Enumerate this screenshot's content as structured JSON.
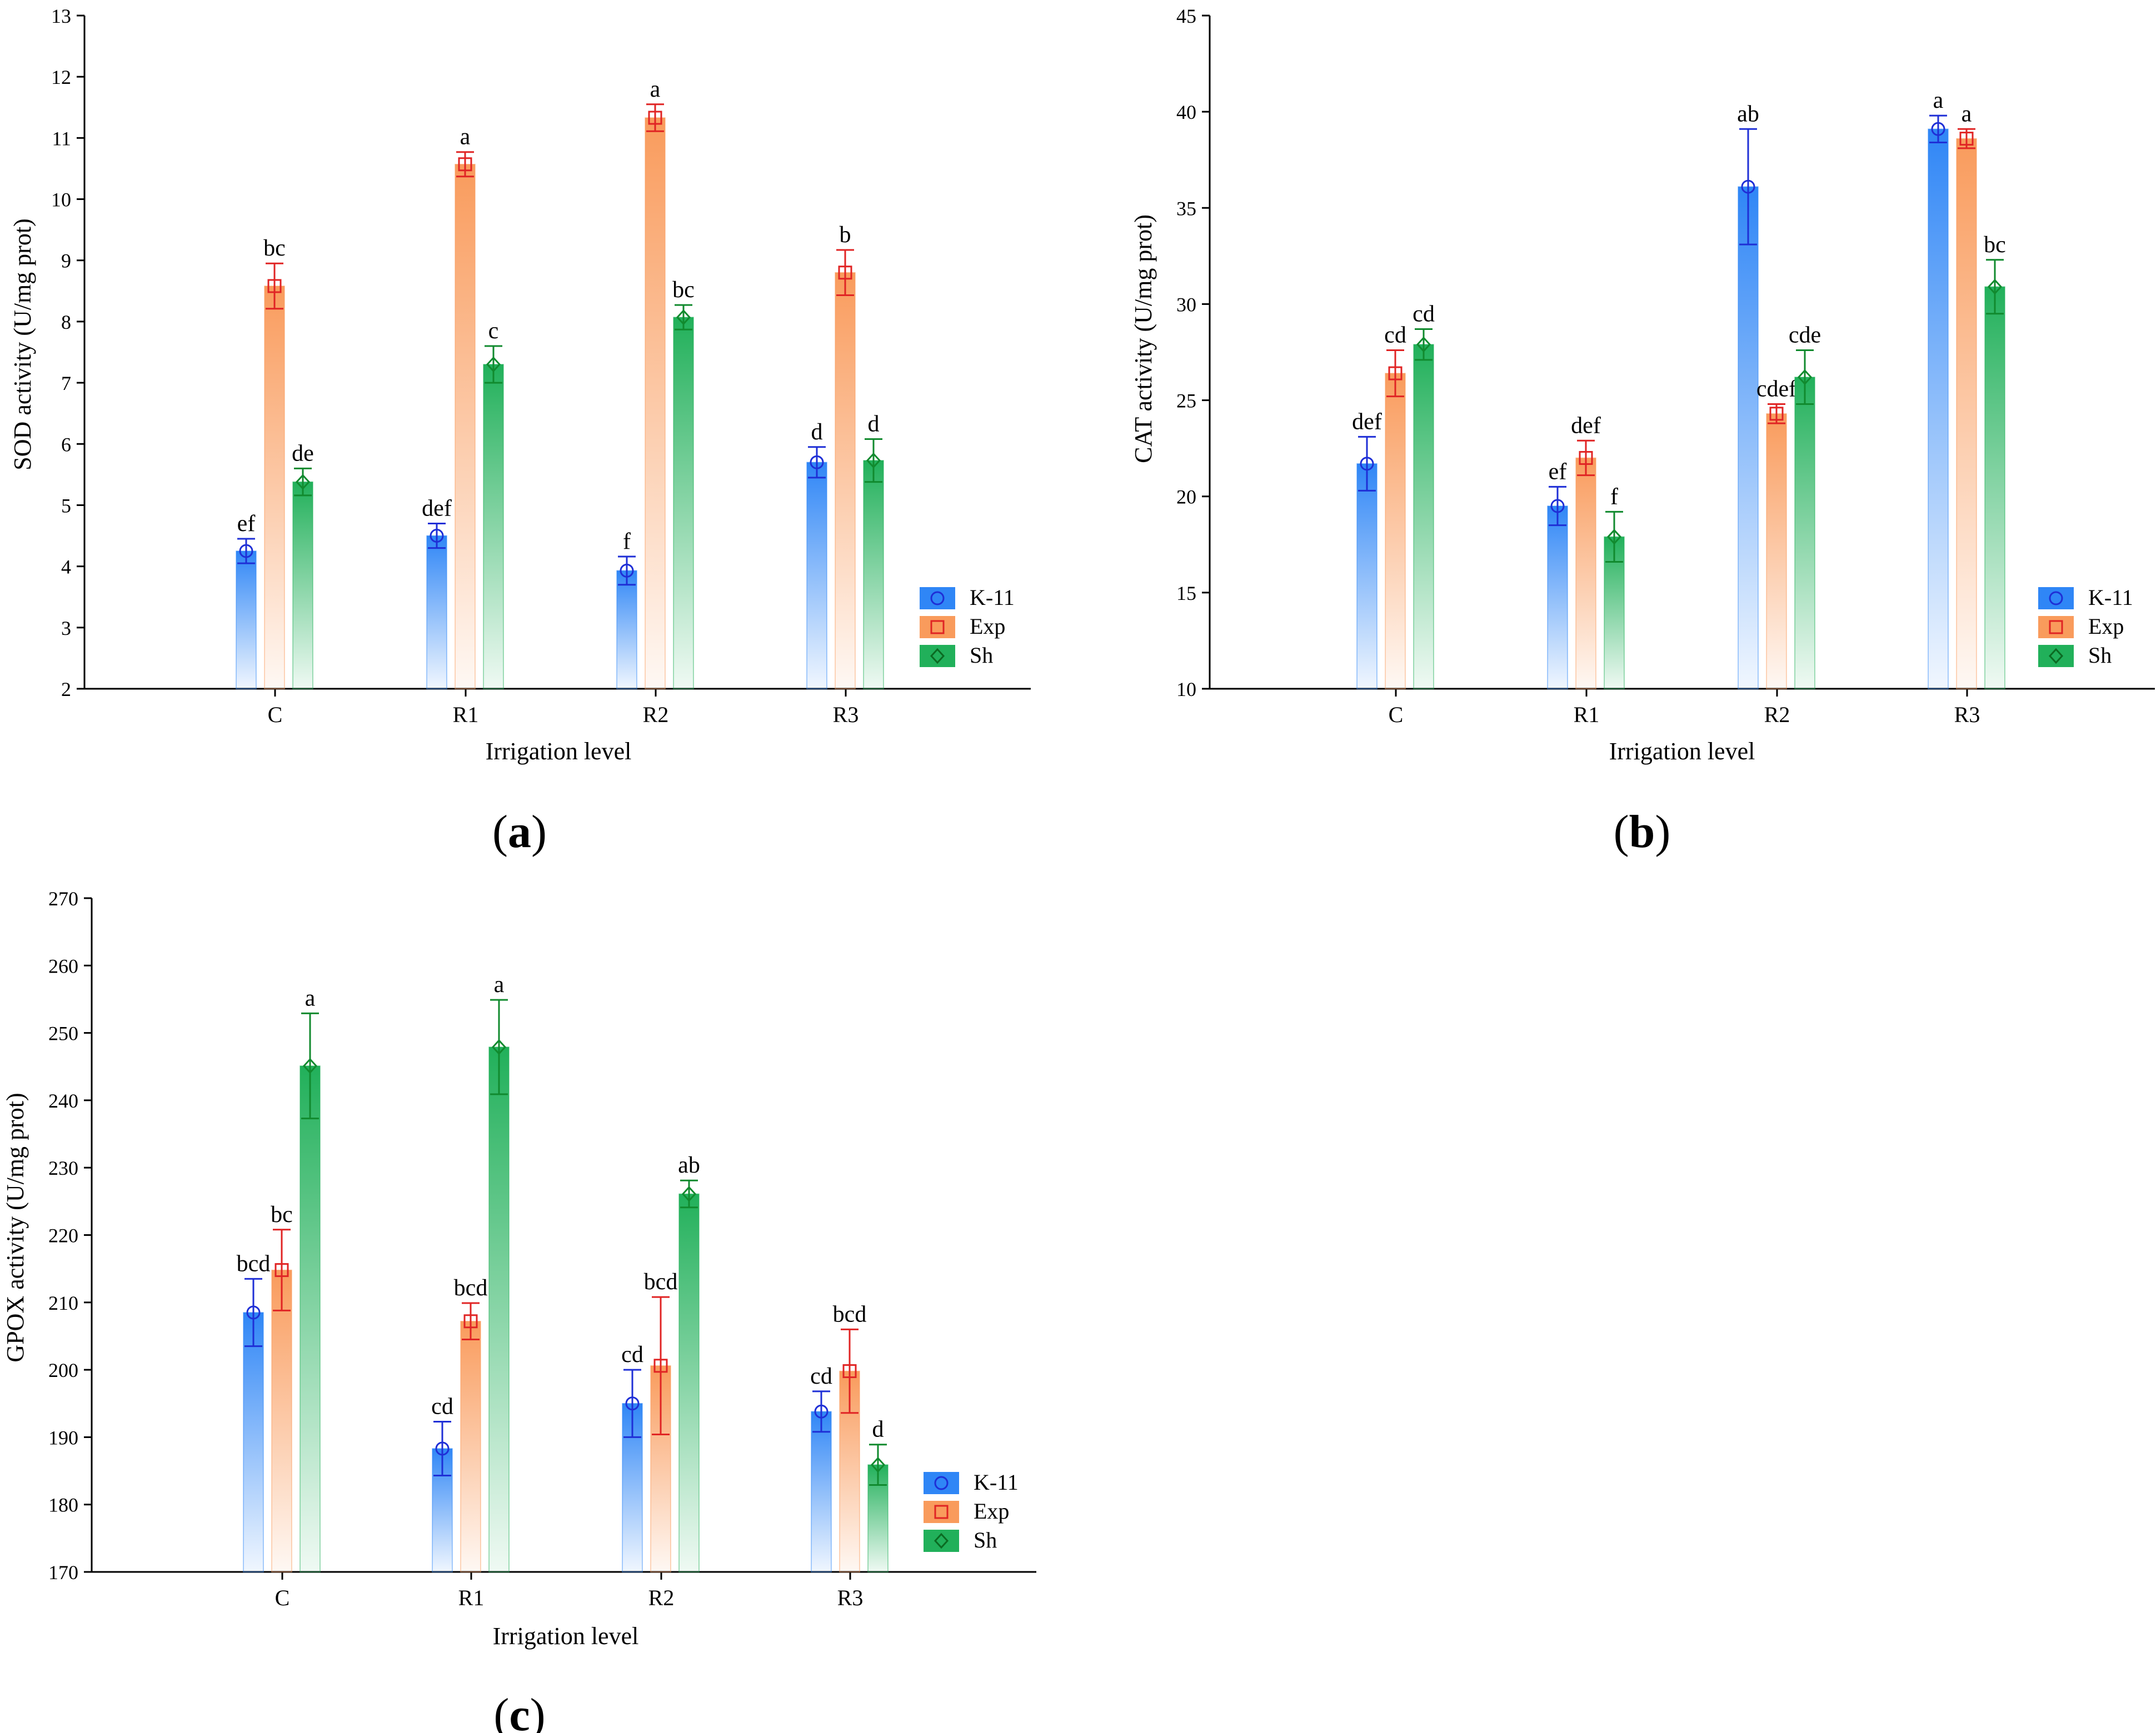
{
  "colors": {
    "K-11": "#2f86f6",
    "Exp": "#f99b5c",
    "Sh": "#21b05a",
    "K-11_err": "#1f2fd6",
    "Exp_err": "#e02424",
    "Sh_err": "#118a2e"
  },
  "legend": [
    {
      "key": "K-11",
      "label": "K-11",
      "marker": "circle"
    },
    {
      "key": "Exp",
      "label": "Exp",
      "marker": "square"
    },
    {
      "key": "Sh",
      "label": "Sh",
      "marker": "diamond"
    }
  ],
  "chart_data": [
    {
      "id": "a",
      "type": "bar",
      "panel_label": "a",
      "ylabel": "SOD activity (U/mg prot)",
      "xlabel": "Irrigation level",
      "ylim": [
        2,
        13
      ],
      "yticks": [
        2,
        3,
        4,
        5,
        6,
        7,
        8,
        9,
        10,
        11,
        12,
        13
      ],
      "categories": [
        "C",
        "R1",
        "R2",
        "R3"
      ],
      "series": [
        {
          "name": "K-11",
          "values": [
            4.25,
            4.5,
            3.93,
            5.7
          ],
          "err": [
            0.2,
            0.2,
            0.23,
            0.25
          ],
          "labels": [
            "ef",
            "def",
            "f",
            "d"
          ]
        },
        {
          "name": "Exp",
          "values": [
            8.58,
            10.57,
            11.33,
            8.8
          ],
          "err": [
            0.37,
            0.2,
            0.22,
            0.37
          ],
          "labels": [
            "bc",
            "a",
            "a",
            "b"
          ]
        },
        {
          "name": "Sh",
          "values": [
            5.38,
            7.3,
            8.07,
            5.73
          ],
          "err": [
            0.22,
            0.3,
            0.2,
            0.35
          ],
          "labels": [
            "de",
            "c",
            "bc",
            "d"
          ]
        }
      ]
    },
    {
      "id": "b",
      "type": "bar",
      "panel_label": "b",
      "ylabel": "CAT activity (U/mg prot)",
      "xlabel": "Irrigation level",
      "ylim": [
        10,
        45
      ],
      "yticks": [
        10,
        15,
        20,
        25,
        30,
        35,
        40,
        45
      ],
      "categories": [
        "C",
        "R1",
        "R2",
        "R3"
      ],
      "series": [
        {
          "name": "K-11",
          "values": [
            21.7,
            19.5,
            36.1,
            39.1
          ],
          "err": [
            1.4,
            1.0,
            3.0,
            0.7
          ],
          "labels": [
            "def",
            "ef",
            "ab",
            "a"
          ]
        },
        {
          "name": "Exp",
          "values": [
            26.4,
            22.0,
            24.3,
            38.6
          ],
          "err": [
            1.2,
            0.9,
            0.5,
            0.5
          ],
          "labels": [
            "cd",
            "def",
            "cdef",
            "a"
          ]
        },
        {
          "name": "Sh",
          "values": [
            27.9,
            17.9,
            26.2,
            30.9
          ],
          "err": [
            0.8,
            1.3,
            1.4,
            1.4
          ],
          "labels": [
            "cd",
            "f",
            "cde",
            "bc"
          ]
        }
      ]
    },
    {
      "id": "c",
      "type": "bar",
      "panel_label": "c",
      "ylabel": "GPOX activity (U/mg prot)",
      "xlabel": "Irrigation level",
      "ylim": [
        170,
        270
      ],
      "yticks": [
        170,
        180,
        190,
        200,
        210,
        220,
        230,
        240,
        250,
        260,
        270
      ],
      "categories": [
        "C",
        "R1",
        "R2",
        "R3"
      ],
      "series": [
        {
          "name": "K-11",
          "values": [
            208.5,
            188.3,
            195.0,
            193.8
          ],
          "err": [
            5.0,
            4.0,
            5.0,
            3.0
          ],
          "labels": [
            "bcd",
            "cd",
            "cd",
            "cd"
          ]
        },
        {
          "name": "Exp",
          "values": [
            214.8,
            207.2,
            200.6,
            199.8
          ],
          "err": [
            6.0,
            2.7,
            10.2,
            6.2
          ],
          "labels": [
            "bc",
            "bcd",
            "bcd",
            "bcd"
          ]
        },
        {
          "name": "Sh",
          "values": [
            245.1,
            247.9,
            226.1,
            185.9
          ],
          "err": [
            7.8,
            7.0,
            2.0,
            3.0
          ],
          "labels": [
            "a",
            "a",
            "ab",
            "d"
          ]
        }
      ]
    }
  ]
}
